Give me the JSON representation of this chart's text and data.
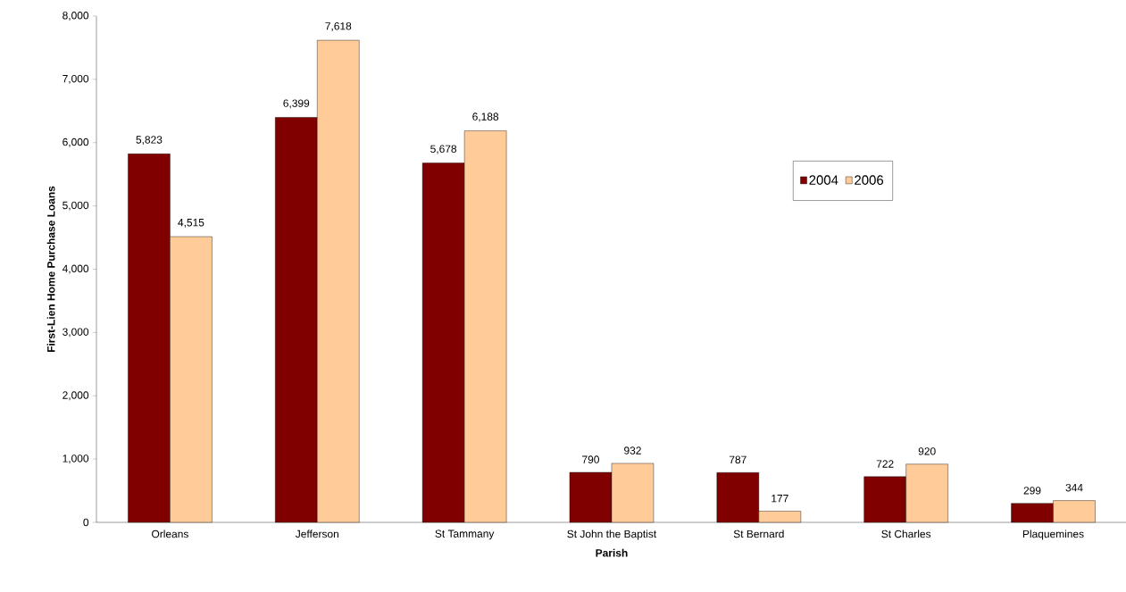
{
  "chart_data": {
    "type": "bar",
    "xlabel": "Parish",
    "ylabel": "First-Lien Home Purchase Loans",
    "categories": [
      "Orleans",
      "Jefferson",
      "St Tammany",
      "St John the Baptist",
      "St Bernard",
      "St Charles",
      "Plaquemines"
    ],
    "series": [
      {
        "name": "2004",
        "color": "#800000",
        "values": [
          5823,
          6399,
          5678,
          790,
          787,
          722,
          299
        ],
        "value_labels": [
          "5,823",
          "6,399",
          "5,678",
          "790",
          "787",
          "722",
          "299"
        ]
      },
      {
        "name": "2006",
        "color": "#ffcc99",
        "values": [
          4515,
          7618,
          6188,
          932,
          177,
          920,
          344
        ],
        "value_labels": [
          "4,515",
          "7,618",
          "6,188",
          "932",
          "177",
          "920",
          "344"
        ]
      }
    ],
    "ylim": [
      0,
      8000
    ],
    "yticks": [
      {
        "value": 0,
        "label": "0"
      },
      {
        "value": 1000,
        "label": "1,000"
      },
      {
        "value": 2000,
        "label": "2,000"
      },
      {
        "value": 3000,
        "label": "3,000"
      },
      {
        "value": 4000,
        "label": "4,000"
      },
      {
        "value": 5000,
        "label": "5,000"
      },
      {
        "value": 6000,
        "label": "6,000"
      },
      {
        "value": 7000,
        "label": "7,000"
      },
      {
        "value": 8000,
        "label": "8,000"
      }
    ],
    "grid": false,
    "legend": "right"
  }
}
